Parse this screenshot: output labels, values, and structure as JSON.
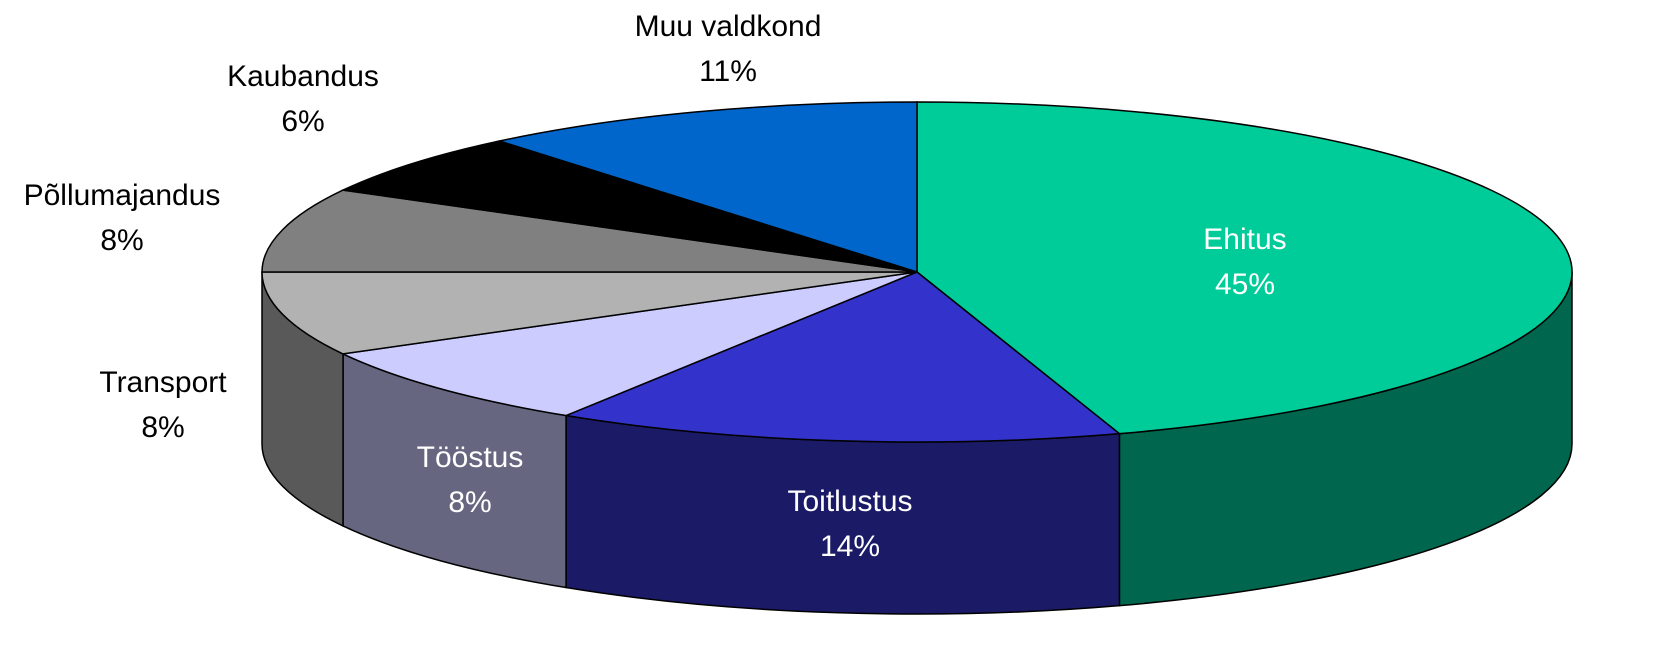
{
  "chart_data": {
    "type": "pie3d",
    "categories": [
      "Ehitus",
      "Toitlustus",
      "Tööstus",
      "Transport",
      "Põllumajandus",
      "Kaubandus",
      "Muu valdkond"
    ],
    "values": [
      45,
      14,
      8,
      8,
      8,
      6,
      11
    ],
    "value_labels": [
      "45%",
      "14%",
      "8%",
      "8%",
      "8%",
      "6%",
      "11%"
    ],
    "colors": [
      "#00cc99",
      "#3333cc",
      "#ccccff",
      "#b2b2b2",
      "#808080",
      "#000000",
      "#0066cc"
    ]
  }
}
